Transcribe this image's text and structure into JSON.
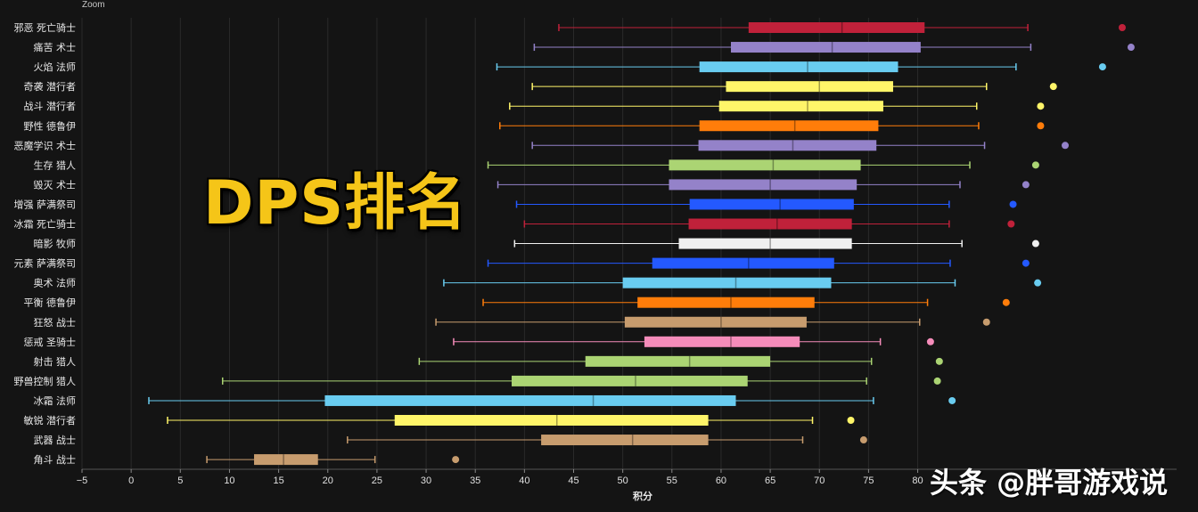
{
  "zoom_label": "Zoom",
  "title_overlay": "DPS排名",
  "watermark": "头条 @胖哥游戏说",
  "chart_data": {
    "type": "box",
    "xlabel": "积分",
    "xlim": [
      -5,
      87
    ],
    "xticks": [
      -5,
      0,
      5,
      10,
      15,
      20,
      25,
      30,
      35,
      40,
      45,
      50,
      55,
      60,
      65,
      70,
      75,
      80
    ],
    "grid": "vertical",
    "categories": [
      {
        "label": "邪恶 死亡骑士",
        "color": "#c0213a",
        "min": 43.5,
        "q1": 62.8,
        "median": 72.3,
        "q3": 80.7,
        "max": 91.2,
        "outlier": 100.8
      },
      {
        "label": "痛苦 术士",
        "color": "#9482c9",
        "min": 41.0,
        "q1": 61.0,
        "median": 71.3,
        "q3": 80.3,
        "max": 91.5,
        "outlier": 101.7
      },
      {
        "label": "火焰 法师",
        "color": "#69ccf0",
        "min": 37.2,
        "q1": 57.8,
        "median": 68.8,
        "q3": 78.0,
        "max": 90.0,
        "outlier": 98.8
      },
      {
        "label": "奇袭 潜行者",
        "color": "#fff569",
        "min": 40.8,
        "q1": 60.5,
        "median": 70.0,
        "q3": 77.5,
        "max": 87.0,
        "outlier": 93.8
      },
      {
        "label": "战斗 潜行者",
        "color": "#fff569",
        "min": 38.5,
        "q1": 59.8,
        "median": 68.8,
        "q3": 76.5,
        "max": 86.0,
        "outlier": 92.5
      },
      {
        "label": "野性 德鲁伊",
        "color": "#ff7d0a",
        "min": 37.5,
        "q1": 57.8,
        "median": 67.5,
        "q3": 76.0,
        "max": 86.2,
        "outlier": 92.5
      },
      {
        "label": "恶魔学识 术士",
        "color": "#9482c9",
        "min": 40.8,
        "q1": 57.7,
        "median": 67.3,
        "q3": 75.8,
        "max": 86.8,
        "outlier": 95.0
      },
      {
        "label": "生存 猎人",
        "color": "#abd473",
        "min": 36.3,
        "q1": 54.7,
        "median": 65.3,
        "q3": 74.2,
        "max": 85.3,
        "outlier": 92.0
      },
      {
        "label": "毁灭 术士",
        "color": "#9482c9",
        "min": 37.3,
        "q1": 54.7,
        "median": 65.0,
        "q3": 73.8,
        "max": 84.3,
        "outlier": 91.0
      },
      {
        "label": "增强 萨满祭司",
        "color": "#2459ff",
        "min": 39.2,
        "q1": 56.8,
        "median": 66.0,
        "q3": 73.5,
        "max": 83.2,
        "outlier": 89.7
      },
      {
        "label": "冰霜 死亡骑士",
        "color": "#c0213a",
        "min": 40.0,
        "q1": 56.7,
        "median": 65.7,
        "q3": 73.3,
        "max": 83.2,
        "outlier": 89.5
      },
      {
        "label": "暗影 牧师",
        "color": "#f0f0f0",
        "min": 39.0,
        "q1": 55.7,
        "median": 65.0,
        "q3": 73.3,
        "max": 84.5,
        "outlier": 92.0
      },
      {
        "label": "元素 萨满祭司",
        "color": "#2459ff",
        "min": 36.3,
        "q1": 53.0,
        "median": 62.8,
        "q3": 71.5,
        "max": 83.3,
        "outlier": 91.0
      },
      {
        "label": "奥术 法师",
        "color": "#69ccf0",
        "min": 31.8,
        "q1": 50.0,
        "median": 61.5,
        "q3": 71.2,
        "max": 83.8,
        "outlier": 92.2
      },
      {
        "label": "平衡 德鲁伊",
        "color": "#ff7d0a",
        "min": 35.8,
        "q1": 51.5,
        "median": 61.0,
        "q3": 69.5,
        "max": 81.0,
        "outlier": 89.0
      },
      {
        "label": "狂怒 战士",
        "color": "#c79c6e",
        "min": 31.0,
        "q1": 50.2,
        "median": 60.0,
        "q3": 68.7,
        "max": 80.2,
        "outlier": 87.0
      },
      {
        "label": "惩戒 圣骑士",
        "color": "#f58cba",
        "min": 32.8,
        "q1": 52.2,
        "median": 61.0,
        "q3": 68.0,
        "max": 76.2,
        "outlier": 81.3
      },
      {
        "label": "射击 猎人",
        "color": "#abd473",
        "min": 29.3,
        "q1": 46.2,
        "median": 56.8,
        "q3": 65.0,
        "max": 75.3,
        "outlier": 82.2
      },
      {
        "label": "野兽控制 猎人",
        "color": "#abd473",
        "min": 9.3,
        "q1": 38.7,
        "median": 51.3,
        "q3": 62.7,
        "max": 74.8,
        "outlier": 82.0
      },
      {
        "label": "冰霜 法师",
        "color": "#69ccf0",
        "min": 1.8,
        "q1": 19.7,
        "median": 47.0,
        "q3": 61.5,
        "max": 75.5,
        "outlier": 83.5
      },
      {
        "label": "敏锐 潜行者",
        "color": "#fff569",
        "min": 3.7,
        "q1": 26.8,
        "median": 43.3,
        "q3": 58.7,
        "max": 69.3,
        "outlier": 73.2
      },
      {
        "label": "武器 战士",
        "color": "#c79c6e",
        "min": 22.0,
        "q1": 41.7,
        "median": 51.0,
        "q3": 58.7,
        "max": 68.3,
        "outlier": 74.5
      },
      {
        "label": "角斗 战士",
        "color": "#c79c6e",
        "min": 7.7,
        "q1": 12.5,
        "median": 15.5,
        "q3": 19.0,
        "max": 24.8,
        "outlier": 33.0
      }
    ]
  }
}
